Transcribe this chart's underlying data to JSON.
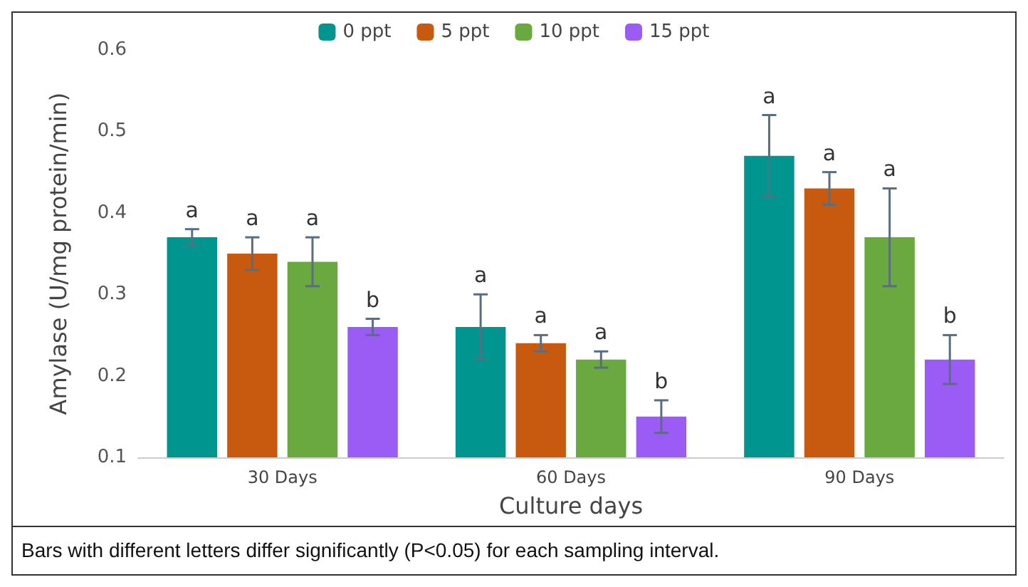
{
  "chart_data": {
    "type": "bar",
    "xlabel": "Culture days",
    "ylabel": "Amylase (U/mg protein/min)",
    "categories": [
      "30 Days",
      "60 Days",
      "90 Days"
    ],
    "series": [
      {
        "name": "0 ppt",
        "color": "#00968f",
        "values": [
          0.37,
          0.26,
          0.47
        ],
        "errors": [
          0.01,
          0.04,
          0.05
        ],
        "value_labels": [
          "a",
          "a",
          "a"
        ]
      },
      {
        "name": "5 ppt",
        "color": "#c85a0f",
        "values": [
          0.35,
          0.24,
          0.43
        ],
        "errors": [
          0.02,
          0.01,
          0.02
        ],
        "value_labels": [
          "a",
          "a",
          "a"
        ]
      },
      {
        "name": "10 ppt",
        "color": "#6aa840",
        "values": [
          0.34,
          0.22,
          0.37
        ],
        "errors": [
          0.03,
          0.01,
          0.06
        ],
        "value_labels": [
          "a",
          "a",
          "a"
        ]
      },
      {
        "name": "15 ppt",
        "color": "#9b5cf6",
        "values": [
          0.26,
          0.15,
          0.22
        ],
        "errors": [
          0.01,
          0.02,
          0.03
        ],
        "value_labels": [
          "b",
          "b",
          "b"
        ]
      }
    ],
    "ylim": [
      0.1,
      0.6
    ],
    "yticks": [
      0.1,
      0.2,
      0.3,
      0.4,
      0.5,
      0.6
    ],
    "grid": false,
    "legend": "top",
    "annotations": [
      "Bars with different letters differ significantly (P<0.05) for each sampling interval."
    ]
  }
}
